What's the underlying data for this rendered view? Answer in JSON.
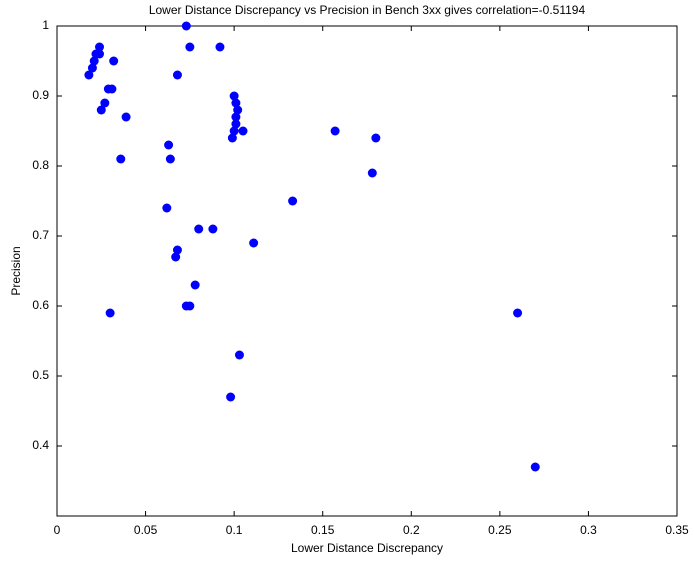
{
  "chart_data": {
    "type": "scatter",
    "title": "Lower Distance Discrepancy vs Precision in Bench 3xx gives correlation=-0.51194",
    "x_label": "Lower Distance Discrepancy",
    "y_label": "Precision",
    "color": "#0000ff",
    "x": [
      0.018,
      0.02,
      0.021,
      0.022,
      0.024,
      0.024,
      0.025,
      0.027,
      0.029,
      0.031,
      0.032,
      0.03,
      0.036,
      0.039,
      0.063,
      0.064,
      0.062,
      0.068,
      0.073,
      0.075,
      0.092,
      0.068,
      0.067,
      0.08,
      0.088,
      0.078,
      0.073,
      0.075,
      0.098,
      0.103,
      0.111,
      0.1,
      0.101,
      0.102,
      0.101,
      0.101,
      0.1,
      0.099,
      0.105,
      0.133,
      0.157,
      0.18,
      0.178,
      0.26,
      0.27
    ],
    "values": [
      0.93,
      0.94,
      0.95,
      0.96,
      0.97,
      0.96,
      0.88,
      0.89,
      0.91,
      0.91,
      0.95,
      0.59,
      0.81,
      0.87,
      0.83,
      0.81,
      0.74,
      0.93,
      1.0,
      0.97,
      0.97,
      0.68,
      0.67,
      0.71,
      0.71,
      0.63,
      0.6,
      0.6,
      0.47,
      0.53,
      0.69,
      0.9,
      0.89,
      0.88,
      0.87,
      0.86,
      0.85,
      0.84,
      0.85,
      0.75,
      0.85,
      0.84,
      0.79,
      0.59,
      0.37
    ],
    "xlim": [
      0,
      0.35
    ],
    "xticks": [
      0,
      0.05,
      0.1,
      0.15,
      0.2,
      0.25,
      0.3,
      0.35
    ],
    "ylim": [
      0.3,
      1
    ],
    "yticks": [
      0.4,
      0.5,
      0.6,
      0.7,
      0.8,
      0.9,
      1
    ],
    "grid": false
  }
}
